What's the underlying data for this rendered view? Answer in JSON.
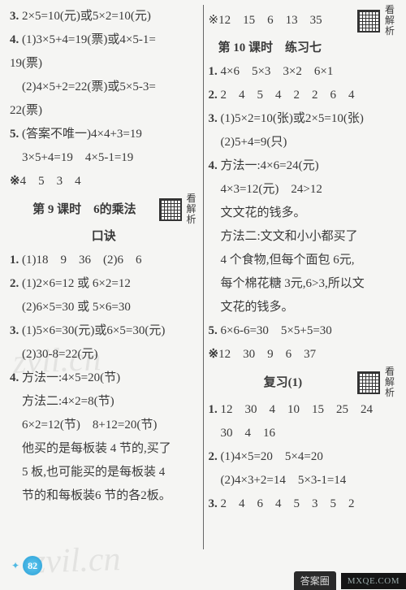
{
  "left": {
    "lines": [
      {
        "cls": "line",
        "text": "3. 2×5=10(元)或5×2=10(元)",
        "name": "q3"
      },
      {
        "cls": "line",
        "text": "4. (1)3×5+4=19(票)或4×5-1=",
        "name": "q4-1a"
      },
      {
        "cls": "line",
        "text": "19(票)",
        "name": "q4-1b"
      },
      {
        "cls": "line",
        "text": "　(2)4×5+2=22(票)或5×5-3=",
        "name": "q4-2a"
      },
      {
        "cls": "line",
        "text": "22(票)",
        "name": "q4-2b"
      },
      {
        "cls": "line",
        "text": "5. (答案不唯一)4×4+3=19",
        "name": "q5a"
      },
      {
        "cls": "line",
        "text": "　3×5+4=19　4×5-1=19",
        "name": "q5b"
      },
      {
        "cls": "line",
        "text": "※4　5　3　4",
        "name": "extra-1"
      }
    ],
    "section9": {
      "title": "第 9 课时　6的乘法",
      "sub": "口诀"
    },
    "lines2": [
      {
        "cls": "line",
        "text": "1. (1)18　9　36　(2)6　6",
        "name": "s9-q1"
      },
      {
        "cls": "line",
        "text": "2. (1)2×6=12 或 6×2=12",
        "name": "s9-q2a"
      },
      {
        "cls": "line",
        "text": "　(2)6×5=30 或 5×6=30",
        "name": "s9-q2b"
      },
      {
        "cls": "line",
        "text": "3. (1)5×6=30(元)或6×5=30(元)",
        "name": "s9-q3a"
      },
      {
        "cls": "line",
        "text": "　(2)30-8=22(元)",
        "name": "s9-q3b"
      },
      {
        "cls": "line",
        "text": "4. 方法一:4×5=20(节)",
        "name": "s9-q4a"
      },
      {
        "cls": "line",
        "text": "　方法二:4×2=8(节)",
        "name": "s9-q4b"
      },
      {
        "cls": "line",
        "text": "　6×2=12(节)　8+12=20(节)",
        "name": "s9-q4c"
      },
      {
        "cls": "line",
        "text": "　他买的是每板装 4 节的,买了",
        "name": "s9-q4d"
      },
      {
        "cls": "line",
        "text": "　5 板,也可能买的是每板装 4",
        "name": "s9-q4e"
      },
      {
        "cls": "line",
        "text": "　节的和每板装6 节的各2板。",
        "name": "s9-q4f"
      }
    ]
  },
  "right": {
    "preline": "※12　15　6　13　35",
    "section10": {
      "title": "第 10 课时　练习七"
    },
    "lines": [
      {
        "cls": "line",
        "text": "1. 4×6　5×3　3×2　6×1",
        "name": "s10-q1"
      },
      {
        "cls": "line",
        "text": "2. 2　4　5　4　2　2　6　4",
        "name": "s10-q2"
      },
      {
        "cls": "line",
        "text": "3. (1)5×2=10(张)或2×5=10(张)",
        "name": "s10-q3a"
      },
      {
        "cls": "line",
        "text": "　(2)5+4=9(只)",
        "name": "s10-q3b"
      },
      {
        "cls": "line",
        "text": "4. 方法一:4×6=24(元)",
        "name": "s10-q4a"
      },
      {
        "cls": "line",
        "text": "　4×3=12(元)　24>12",
        "name": "s10-q4b"
      },
      {
        "cls": "line",
        "text": "　文文花的钱多。",
        "name": "s10-q4c"
      },
      {
        "cls": "line",
        "text": "　方法二:文文和小小都买了",
        "name": "s10-q4d"
      },
      {
        "cls": "line",
        "text": "　4 个食物,但每个面包 6元,",
        "name": "s10-q4e"
      },
      {
        "cls": "line",
        "text": "　每个棉花糖 3元,6>3,所以文",
        "name": "s10-q4f"
      },
      {
        "cls": "line",
        "text": "　文花的钱多。",
        "name": "s10-q4g"
      },
      {
        "cls": "line",
        "text": "5. 6×6-6=30　5×5+5=30",
        "name": "s10-q5"
      },
      {
        "cls": "line",
        "text": "※12　30　9　6　37",
        "name": "s10-extra"
      }
    ],
    "review": {
      "title": "复习(1)"
    },
    "lines2": [
      {
        "cls": "line",
        "text": "1. 12　30　4　10　15　25　24",
        "name": "rv-q1a"
      },
      {
        "cls": "line",
        "text": "　30　4　16",
        "name": "rv-q1b"
      },
      {
        "cls": "line",
        "text": "2. (1)4×5=20　5×4=20",
        "name": "rv-q2a"
      },
      {
        "cls": "line",
        "text": "　(2)4×3+2=14　5×3-1=14",
        "name": "rv-q2b"
      },
      {
        "cls": "line",
        "text": "3. 2　4　6　4　5　3　5　2",
        "name": "rv-q3"
      }
    ]
  },
  "qr_label": "看解析",
  "page_number": "82",
  "watermark": "zvil.cn",
  "footer_badge": "答案圈",
  "footer_site": "MXQE.COM"
}
